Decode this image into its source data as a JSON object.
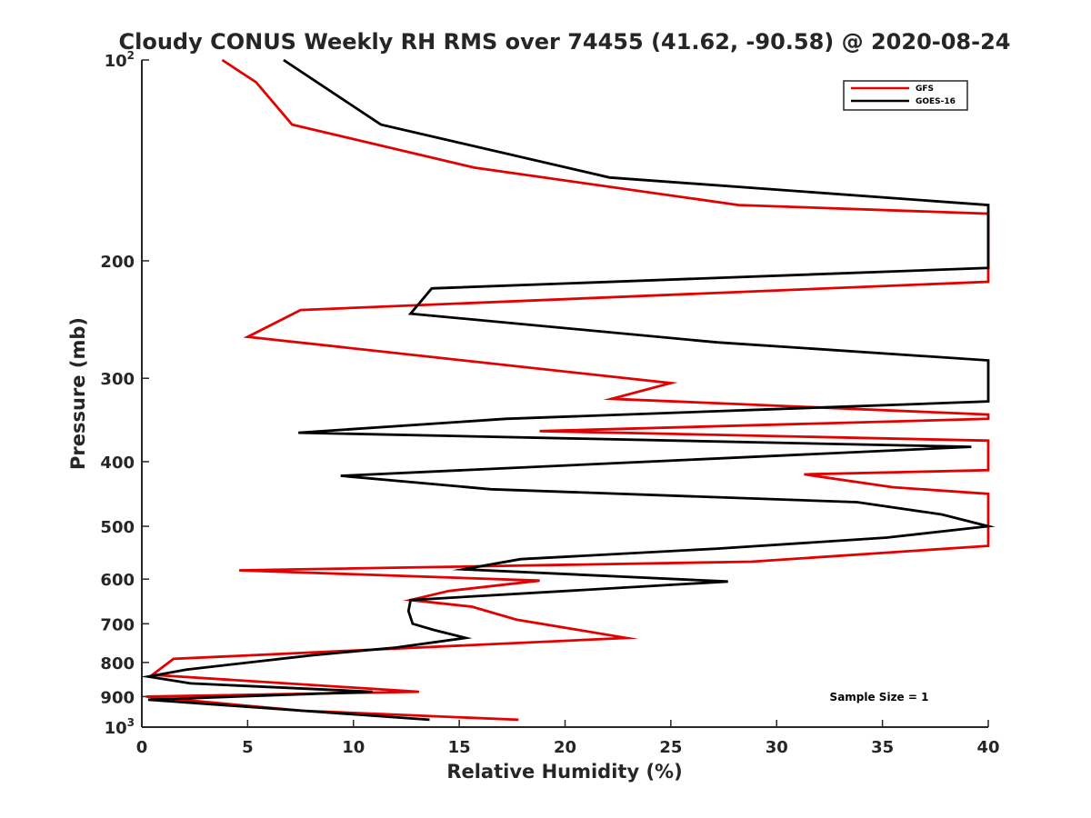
{
  "chart_data": {
    "type": "line",
    "title": "Cloudy CONUS Weekly RH RMS over 74455 (41.62, -90.58) @ 2020-08-24",
    "xlabel": "Relative Humidity (%)",
    "ylabel": "Pressure (mb)",
    "xlim": [
      0,
      40
    ],
    "ylim": [
      100,
      1000
    ],
    "y_scale": "log",
    "y_reversed": true,
    "x_ticks": [
      0,
      5,
      10,
      15,
      20,
      25,
      30,
      35,
      40
    ],
    "x_tick_labels": [
      "0",
      "5",
      "10",
      "15",
      "20",
      "25",
      "30",
      "35",
      "40"
    ],
    "y_ticks": [
      {
        "value": 100,
        "base": "10",
        "exp": "2"
      },
      {
        "value": 200,
        "label": "200"
      },
      {
        "value": 300,
        "label": "300"
      },
      {
        "value": 400,
        "label": "400"
      },
      {
        "value": 500,
        "label": "500"
      },
      {
        "value": 600,
        "label": "600"
      },
      {
        "value": 700,
        "label": "700"
      },
      {
        "value": 800,
        "label": "800"
      },
      {
        "value": 900,
        "label": "900"
      },
      {
        "value": 1000,
        "base": "10",
        "exp": "3"
      }
    ],
    "grid": false,
    "legend_position": "top-right",
    "annotation": "Sample Size = 1",
    "series": [
      {
        "name": "GFS",
        "color": "#e30000",
        "x": [
          3.8,
          5.4,
          7.1,
          15.7,
          28.2,
          40,
          40,
          40,
          7.5,
          5.0,
          25.0,
          22.2,
          40,
          40,
          18.8,
          40,
          40,
          31.3,
          35.5,
          40,
          40,
          40,
          28.8,
          4.6,
          18.8,
          14.5,
          12.7,
          15.6,
          17.7,
          22.9,
          1.5,
          0.5,
          13.1,
          0.2,
          7.6,
          17.8
        ],
        "y": [
          100,
          108,
          125,
          145,
          165,
          170,
          170,
          215,
          237,
          260,
          305,
          322,
          340,
          345,
          360,
          372,
          412,
          418,
          437,
          447,
          448,
          535,
          565,
          582,
          603,
          625,
          645,
          660,
          690,
          735,
          790,
          835,
          885,
          900,
          945,
          975
        ]
      },
      {
        "name": "GOES-16",
        "color": "#000000",
        "x": [
          6.7,
          11.3,
          22.1,
          40,
          40,
          13.7,
          12.7,
          27.2,
          40,
          40,
          17.2,
          7.4,
          39.2,
          9.4,
          16.5,
          33.8,
          37.8,
          40,
          35.2,
          27.2,
          17.9,
          15.2,
          27.7,
          12.7,
          12.6,
          12.8,
          13.8,
          15.3,
          12.0,
          8.1,
          2.1,
          0.3,
          2.3,
          10.9,
          0.3,
          13.6
        ],
        "y": [
          100,
          125,
          150,
          165,
          205,
          220,
          240,
          265,
          282,
          325,
          345,
          362,
          380,
          420,
          440,
          460,
          480,
          500,
          520,
          540,
          560,
          580,
          605,
          645,
          670,
          700,
          715,
          735,
          760,
          780,
          820,
          840,
          860,
          885,
          910,
          975
        ]
      }
    ]
  }
}
